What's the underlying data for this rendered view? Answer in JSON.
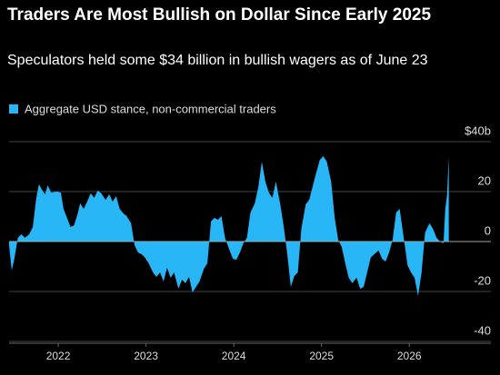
{
  "chart_data": {
    "type": "area",
    "title": "Traders Are Most Bullish on Dollar Since Early 2025",
    "subtitle": "Speculators held some $34 billion in bullish wagers as of June 23",
    "series": [
      {
        "name": "Aggregate USD stance, non-commercial traders",
        "color": "#29b6f6",
        "x": [
          2021.94,
          2021.97,
          2022.0,
          2022.04,
          2022.08,
          2022.12,
          2022.17,
          2022.21,
          2022.25,
          2022.28,
          2022.32,
          2022.35,
          2022.38,
          2022.42,
          2022.48,
          2022.53,
          2022.56,
          2022.6,
          2022.64,
          2022.68,
          2022.72,
          2022.75,
          2022.79,
          2022.83,
          2022.87,
          2022.91,
          2022.95,
          2022.99,
          2023.04,
          2023.08,
          2023.12,
          2023.16,
          2023.2,
          2023.24,
          2023.28,
          2023.33,
          2023.37,
          2023.41,
          2023.45,
          2023.49,
          2023.53,
          2023.58,
          2023.62,
          2023.66,
          2023.7,
          2023.74,
          2023.78,
          2023.82,
          2023.87,
          2023.91,
          2023.95,
          2023.99,
          2024.03,
          2024.07,
          2024.11,
          2024.16,
          2024.2,
          2024.24,
          2024.28,
          2024.32,
          2024.36,
          2024.4,
          2024.45,
          2024.49,
          2024.53,
          2024.57,
          2024.61,
          2024.65,
          2024.69,
          2024.74,
          2024.78,
          2024.82,
          2024.86,
          2024.9,
          2024.94,
          2024.98,
          2025.03,
          2025.07,
          2025.11,
          2025.15,
          2025.19,
          2025.23,
          2025.27,
          2025.32,
          2025.36,
          2025.4,
          2025.44,
          2025.48,
          2025.52,
          2025.56,
          2025.61,
          2025.65,
          2025.69,
          2025.73,
          2025.77,
          2025.81,
          2025.85,
          2025.9,
          2025.94,
          2025.98,
          2026.02,
          2026.06,
          2026.1,
          2026.15,
          2026.19,
          2026.23,
          2026.27,
          2026.31,
          2026.35,
          2026.39,
          2026.44,
          2026.48,
          2026.52,
          2026.56,
          2026.6,
          2026.64,
          2026.68,
          2026.73,
          2026.77,
          2026.81,
          2026.85,
          2026.89,
          2026.91,
          2026.93,
          2026.95
        ],
        "values": [
          -1.5,
          -11.6,
          -6.9,
          1.5,
          2.9,
          1.5,
          2.9,
          5.8,
          17.5,
          22.9,
          20.4,
          18.9,
          22.5,
          19.6,
          20.0,
          19.6,
          13.1,
          9.5,
          5.8,
          6.5,
          10.9,
          15.3,
          13.1,
          16.0,
          19.3,
          17.5,
          20.4,
          19.3,
          16.7,
          18.9,
          16.0,
          18.2,
          13.1,
          11.3,
          10.2,
          7.3,
          -1.5,
          -4.4,
          -5.1,
          -6.5,
          -8.7,
          -12.4,
          -14.2,
          -12.4,
          -16.0,
          -10.5,
          -14.5,
          -12.4,
          -18.9,
          -15.3,
          -16.7,
          -14.2,
          -20.4,
          -18.2,
          -16.0,
          -10.9,
          -8.7,
          8.0,
          9.5,
          8.7,
          10.2,
          1.5,
          -3.3,
          -6.9,
          -7.3,
          -4.4,
          -0.7,
          1.5,
          11.6,
          15.3,
          21.8,
          32.0,
          24.0,
          19.6,
          17.5,
          24.0,
          14.9,
          5.8,
          -5.1,
          -18.2,
          -13.8,
          -12.4,
          5.1,
          14.9,
          16.7,
          22.2,
          27.6,
          32.7,
          34.2,
          32.0,
          24.0,
          9.5,
          0.7,
          -2.2,
          -8.7,
          -14.5,
          -16.7,
          -14.5,
          -18.9,
          -18.2,
          -12.4,
          -6.5,
          -5.1,
          -3.6,
          -6.9,
          -8.0,
          -4.4,
          0.7,
          11.6,
          13.1,
          0.7,
          -9.5,
          -12.4,
          -14.5,
          -21.8,
          -12.4,
          3.6,
          7.3,
          5.1,
          1.5,
          0,
          -0.7,
          13.1,
          18.5,
          34.0
        ]
      }
    ],
    "xlim": [
      2021.94,
      2027.43
    ],
    "xticks": [
      {
        "value": 2022.5,
        "label": "2022"
      },
      {
        "value": 2023.5,
        "label": "2023"
      },
      {
        "value": 2024.5,
        "label": "2024"
      },
      {
        "value": 2025.5,
        "label": "2025"
      },
      {
        "value": 2026.5,
        "label": "2026"
      }
    ],
    "ylim": [
      -40,
      40
    ],
    "yticks": [
      {
        "value": 40,
        "label": "$40b"
      },
      20,
      0,
      -20,
      -40
    ],
    "grid": true
  }
}
